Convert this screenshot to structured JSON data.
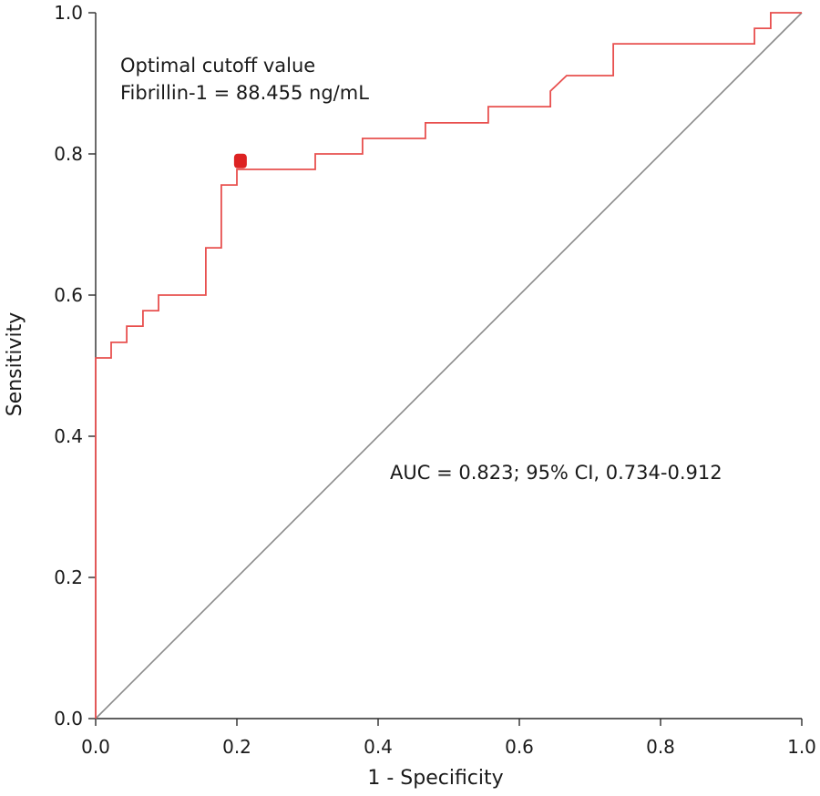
{
  "chart_data": {
    "type": "line",
    "xlabel": "1 - Specificity",
    "ylabel": "Sensitivity",
    "xlim": [
      0.0,
      1.0
    ],
    "ylim": [
      0.0,
      1.0
    ],
    "x_ticks": [
      "0.0",
      "0.2",
      "0.4",
      "0.6",
      "0.8",
      "1.0"
    ],
    "y_ticks": [
      "0.0",
      "0.2",
      "0.4",
      "0.6",
      "0.8",
      "1.0"
    ],
    "grid": false,
    "colors": {
      "roc": "#e8504f",
      "cutoff_marker": "#dd2222",
      "reference": "#8a8a8a",
      "axis": "#2a2a2a"
    },
    "annotations": {
      "cutoff_line1": "Optimal cutoff value",
      "cutoff_line2": "Fibrillin-1 = 88.455 ng/mL",
      "auc": "AUC = 0.823; 95% CI, 0.734-0.912"
    },
    "optimal_point": {
      "x": 0.205,
      "y": 0.79
    },
    "series": [
      {
        "values": [
          [
            0.0,
            0.0
          ],
          [
            0.0,
            0.511
          ],
          [
            0.022,
            0.511
          ],
          [
            0.022,
            0.533
          ],
          [
            0.044,
            0.533
          ],
          [
            0.044,
            0.556
          ],
          [
            0.067,
            0.556
          ],
          [
            0.067,
            0.578
          ],
          [
            0.089,
            0.578
          ],
          [
            0.089,
            0.6
          ],
          [
            0.156,
            0.6
          ],
          [
            0.156,
            0.667
          ],
          [
            0.178,
            0.667
          ],
          [
            0.178,
            0.756
          ],
          [
            0.2,
            0.756
          ],
          [
            0.2,
            0.778
          ],
          [
            0.311,
            0.778
          ],
          [
            0.311,
            0.8
          ],
          [
            0.378,
            0.8
          ],
          [
            0.378,
            0.822
          ],
          [
            0.467,
            0.822
          ],
          [
            0.467,
            0.844
          ],
          [
            0.556,
            0.844
          ],
          [
            0.556,
            0.867
          ],
          [
            0.644,
            0.867
          ],
          [
            0.644,
            0.889
          ],
          [
            0.667,
            0.911
          ],
          [
            0.733,
            0.911
          ],
          [
            0.733,
            0.956
          ],
          [
            0.933,
            0.956
          ],
          [
            0.933,
            0.978
          ],
          [
            0.956,
            0.978
          ],
          [
            0.956,
            1.0
          ],
          [
            1.0,
            1.0
          ]
        ]
      },
      {
        "values": [
          [
            0.0,
            0.0
          ],
          [
            1.0,
            1.0
          ]
        ]
      }
    ]
  }
}
